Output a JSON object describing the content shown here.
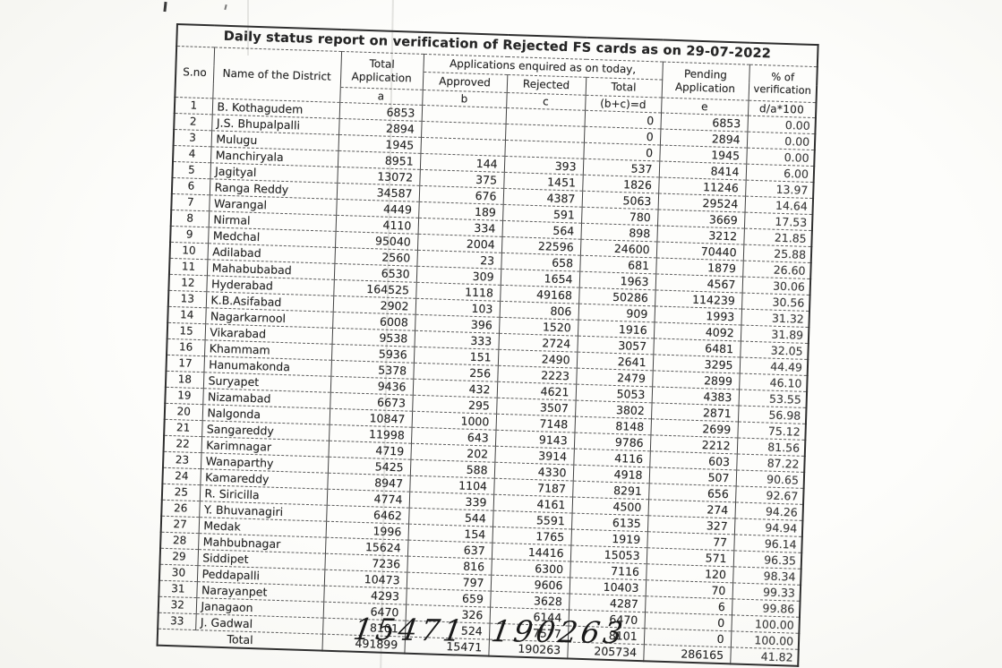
{
  "page": {
    "title": "Daily status report on verification of Rejected FS cards as on 29-07-2022",
    "handwritten_note": "15471  190263"
  },
  "colors": {
    "ink": "#252525",
    "paper": "#fafaf7"
  },
  "table": {
    "columns": {
      "sno": "S.no",
      "district": "Name of the District",
      "total_application": "Total Application",
      "enquired_group": "Applications  enquired as on today,",
      "approved": "Approved",
      "rejected": "Rejected",
      "total": "Total",
      "pending": "Pending Application",
      "verification": "% of verification"
    },
    "letters": {
      "a": "a",
      "b": "b",
      "c": "c",
      "d": "(b+c)=d",
      "e": "e",
      "pct": "d/a*100"
    },
    "rows": [
      {
        "sno": "1",
        "district": "B. Kothagudem",
        "a": "6853",
        "b": "",
        "c": "",
        "d": "0",
        "e": "6853",
        "pct": "0.00"
      },
      {
        "sno": "2",
        "district": "J.S. Bhupalpalli",
        "a": "2894",
        "b": "",
        "c": "",
        "d": "0",
        "e": "2894",
        "pct": "0.00"
      },
      {
        "sno": "3",
        "district": "Mulugu",
        "a": "1945",
        "b": "",
        "c": "",
        "d": "0",
        "e": "1945",
        "pct": "0.00"
      },
      {
        "sno": "4",
        "district": "Manchiryala",
        "a": "8951",
        "b": "144",
        "c": "393",
        "d": "537",
        "e": "8414",
        "pct": "6.00"
      },
      {
        "sno": "5",
        "district": "Jagityal",
        "a": "13072",
        "b": "375",
        "c": "1451",
        "d": "1826",
        "e": "11246",
        "pct": "13.97"
      },
      {
        "sno": "6",
        "district": "Ranga Reddy",
        "a": "34587",
        "b": "676",
        "c": "4387",
        "d": "5063",
        "e": "29524",
        "pct": "14.64"
      },
      {
        "sno": "7",
        "district": "Warangal",
        "a": "4449",
        "b": "189",
        "c": "591",
        "d": "780",
        "e": "3669",
        "pct": "17.53"
      },
      {
        "sno": "8",
        "district": "Nirmal",
        "a": "4110",
        "b": "334",
        "c": "564",
        "d": "898",
        "e": "3212",
        "pct": "21.85"
      },
      {
        "sno": "9",
        "district": "Medchal",
        "a": "95040",
        "b": "2004",
        "c": "22596",
        "d": "24600",
        "e": "70440",
        "pct": "25.88"
      },
      {
        "sno": "10",
        "district": "Adilabad",
        "a": "2560",
        "b": "23",
        "c": "658",
        "d": "681",
        "e": "1879",
        "pct": "26.60"
      },
      {
        "sno": "11",
        "district": "Mahabubabad",
        "a": "6530",
        "b": "309",
        "c": "1654",
        "d": "1963",
        "e": "4567",
        "pct": "30.06"
      },
      {
        "sno": "12",
        "district": "Hyderabad",
        "a": "164525",
        "b": "1118",
        "c": "49168",
        "d": "50286",
        "e": "114239",
        "pct": "30.56"
      },
      {
        "sno": "13",
        "district": "K.B.Asifabad",
        "a": "2902",
        "b": "103",
        "c": "806",
        "d": "909",
        "e": "1993",
        "pct": "31.32"
      },
      {
        "sno": "14",
        "district": "Nagarkarnool",
        "a": "6008",
        "b": "396",
        "c": "1520",
        "d": "1916",
        "e": "4092",
        "pct": "31.89"
      },
      {
        "sno": "15",
        "district": "Vikarabad",
        "a": "9538",
        "b": "333",
        "c": "2724",
        "d": "3057",
        "e": "6481",
        "pct": "32.05"
      },
      {
        "sno": "16",
        "district": "Khammam",
        "a": "5936",
        "b": "151",
        "c": "2490",
        "d": "2641",
        "e": "3295",
        "pct": "44.49"
      },
      {
        "sno": "17",
        "district": "Hanumakonda",
        "a": "5378",
        "b": "256",
        "c": "2223",
        "d": "2479",
        "e": "2899",
        "pct": "46.10"
      },
      {
        "sno": "18",
        "district": "Suryapet",
        "a": "9436",
        "b": "432",
        "c": "4621",
        "d": "5053",
        "e": "4383",
        "pct": "53.55"
      },
      {
        "sno": "19",
        "district": "Nizamabad",
        "a": "6673",
        "b": "295",
        "c": "3507",
        "d": "3802",
        "e": "2871",
        "pct": "56.98"
      },
      {
        "sno": "20",
        "district": "Nalgonda",
        "a": "10847",
        "b": "1000",
        "c": "7148",
        "d": "8148",
        "e": "2699",
        "pct": "75.12"
      },
      {
        "sno": "21",
        "district": "Sangareddy",
        "a": "11998",
        "b": "643",
        "c": "9143",
        "d": "9786",
        "e": "2212",
        "pct": "81.56"
      },
      {
        "sno": "22",
        "district": "Karimnagar",
        "a": "4719",
        "b": "202",
        "c": "3914",
        "d": "4116",
        "e": "603",
        "pct": "87.22"
      },
      {
        "sno": "23",
        "district": "Wanaparthy",
        "a": "5425",
        "b": "588",
        "c": "4330",
        "d": "4918",
        "e": "507",
        "pct": "90.65"
      },
      {
        "sno": "24",
        "district": "Kamareddy",
        "a": "8947",
        "b": "1104",
        "c": "7187",
        "d": "8291",
        "e": "656",
        "pct": "92.67"
      },
      {
        "sno": "25",
        "district": "R. Siricilla",
        "a": "4774",
        "b": "339",
        "c": "4161",
        "d": "4500",
        "e": "274",
        "pct": "94.26"
      },
      {
        "sno": "26",
        "district": "Y. Bhuvanagiri",
        "a": "6462",
        "b": "544",
        "c": "5591",
        "d": "6135",
        "e": "327",
        "pct": "94.94"
      },
      {
        "sno": "27",
        "district": "Medak",
        "a": "1996",
        "b": "154",
        "c": "1765",
        "d": "1919",
        "e": "77",
        "pct": "96.14"
      },
      {
        "sno": "28",
        "district": "Mahbubnagar",
        "a": "15624",
        "b": "637",
        "c": "14416",
        "d": "15053",
        "e": "571",
        "pct": "96.35"
      },
      {
        "sno": "29",
        "district": "Siddipet",
        "a": "7236",
        "b": "816",
        "c": "6300",
        "d": "7116",
        "e": "120",
        "pct": "98.34"
      },
      {
        "sno": "30",
        "district": "Peddapalli",
        "a": "10473",
        "b": "797",
        "c": "9606",
        "d": "10403",
        "e": "70",
        "pct": "99.33"
      },
      {
        "sno": "31",
        "district": "Narayanpet",
        "a": "4293",
        "b": "659",
        "c": "3628",
        "d": "4287",
        "e": "6",
        "pct": "99.86"
      },
      {
        "sno": "32",
        "district": "Janagaon",
        "a": "6470",
        "b": "326",
        "c": "6144",
        "d": "6470",
        "e": "0",
        "pct": "100.00"
      },
      {
        "sno": "33",
        "district": "J. Gadwal",
        "a": "8101",
        "b": "524",
        "c": "7577",
        "d": "8101",
        "e": "0",
        "pct": "100.00"
      }
    ],
    "total": {
      "label": "Total",
      "a": "491899",
      "b": "15471",
      "c": "190263",
      "d": "205734",
      "e": "286165",
      "pct": "41.82"
    }
  }
}
